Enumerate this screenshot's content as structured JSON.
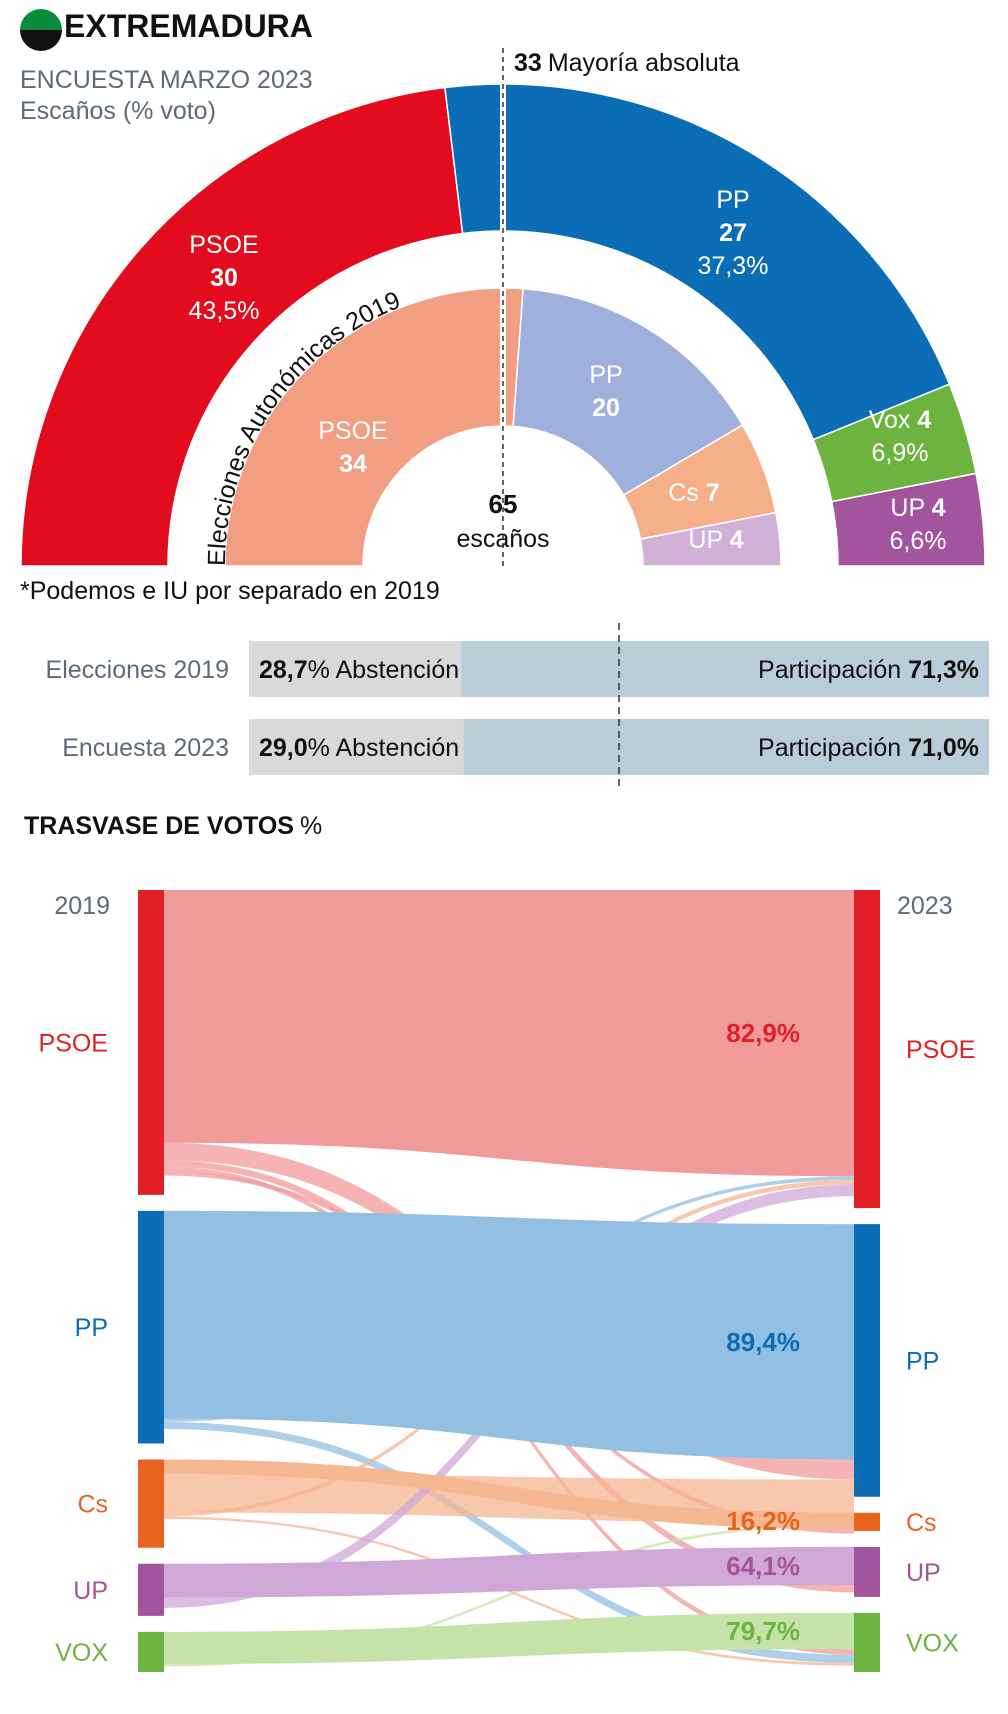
{
  "header": {
    "region": "EXTREMADURA",
    "survey": "ENCUESTA MARZO 2023",
    "subtitle": "Escaños (% voto)",
    "flag_colors": [
      "#0a8a3c",
      "#ffffff",
      "#111111"
    ]
  },
  "majority": {
    "seats": "33",
    "label": "Mayoría absoluta"
  },
  "center": {
    "seats": "65",
    "label": "escaños"
  },
  "footnote": "*Podemos e IU por separado en 2019",
  "chart_data": [
    {
      "type": "pie",
      "subtype": "hemicycle",
      "title": "ENCUESTA MARZO 2023",
      "total_seats": 65,
      "series": [
        {
          "name": "PSOE",
          "seats": 30,
          "seats_label": "30",
          "vote_pct": 43.5,
          "vote_label": "43,5%",
          "color": "#e30c1f"
        },
        {
          "name": "PP",
          "seats": 27,
          "seats_label": "27",
          "vote_pct": 37.3,
          "vote_label": "37,3%",
          "color": "#0a6db5"
        },
        {
          "name": "Vox",
          "seats": 4,
          "seats_label": "4",
          "vote_pct": 6.9,
          "vote_label": "6,9%",
          "color": "#6db33f"
        },
        {
          "name": "UP",
          "seats": 4,
          "seats_label": "4",
          "vote_pct": 6.6,
          "vote_label": "6,6%",
          "color": "#a2559d"
        }
      ]
    },
    {
      "type": "pie",
      "subtype": "hemicycle",
      "title": "Elecciones Autonómicas 2019",
      "total_seats": 65,
      "series": [
        {
          "name": "PSOE",
          "seats": 34,
          "seats_label": "34",
          "color": "#f19e82"
        },
        {
          "name": "PP",
          "seats": 20,
          "seats_label": "20",
          "color": "#9fb0dc"
        },
        {
          "name": "Cs",
          "seats": 7,
          "seats_label": "7",
          "color": "#f5b08a"
        },
        {
          "name": "UP",
          "seats": 4,
          "seats_label": "4",
          "color": "#d2b1d8"
        }
      ]
    },
    {
      "type": "bar",
      "subtype": "stacked-100",
      "categories": [
        "Elecciones 2019",
        "Encuesta 2023"
      ],
      "series": [
        {
          "name": "Abstención",
          "values": [
            28.7,
            29.0
          ],
          "labels": [
            "28,7",
            "29,0"
          ],
          "color": "#d9d9d9"
        },
        {
          "name": "Participación",
          "values": [
            71.3,
            71.0
          ],
          "labels": [
            "71,3%",
            "71,0%"
          ],
          "color": "#b9cdd9"
        }
      ]
    },
    {
      "type": "sankey",
      "title": "TRASVASE DE VOTOS",
      "title_unit": "%",
      "left_label": "2019",
      "right_label": "2023",
      "left_nodes": [
        {
          "name": "PSOE",
          "value": 38,
          "color": "#e01f26"
        },
        {
          "name": "PP",
          "value": 29,
          "color": "#0a6db5"
        },
        {
          "name": "Cs",
          "value": 11,
          "color": "#e8641e"
        },
        {
          "name": "UP",
          "value": 6.5,
          "color": "#a2559d"
        },
        {
          "name": "VOX",
          "value": 5,
          "color": "#6db33f"
        }
      ],
      "right_nodes": [
        {
          "name": "PSOE",
          "value": 35,
          "color": "#e01f26"
        },
        {
          "name": "PP",
          "value": 30,
          "color": "#0a6db5"
        },
        {
          "name": "Cs",
          "value": 2,
          "color": "#e8641e"
        },
        {
          "name": "UP",
          "value": 5.5,
          "color": "#a2559d"
        },
        {
          "name": "VOX",
          "value": 6.5,
          "color": "#6db33f"
        }
      ],
      "flows": [
        {
          "from": "PSOE",
          "to": "PSOE",
          "value": 31.5,
          "label": "82,9%"
        },
        {
          "from": "PSOE",
          "to": "PP",
          "value": 2.2
        },
        {
          "from": "PSOE",
          "to": "UP",
          "value": 0.8
        },
        {
          "from": "PSOE",
          "to": "VOX",
          "value": 0.6
        },
        {
          "from": "PSOE",
          "to": "Cs",
          "value": 0.5
        },
        {
          "from": "PP",
          "to": "PSOE",
          "value": 0.4
        },
        {
          "from": "PP",
          "to": "PP",
          "value": 25.9,
          "label": "89,4%"
        },
        {
          "from": "PP",
          "to": "VOX",
          "value": 0.9
        },
        {
          "from": "Cs",
          "to": "PP",
          "value": 4.8
        },
        {
          "from": "Cs",
          "to": "Cs",
          "value": 1.8,
          "label": "16,2%"
        },
        {
          "from": "Cs",
          "to": "PSOE",
          "value": 0.5
        },
        {
          "from": "Cs",
          "to": "VOX",
          "value": 0.3
        },
        {
          "from": "UP",
          "to": "PSOE",
          "value": 1.3
        },
        {
          "from": "UP",
          "to": "UP",
          "value": 4.2,
          "label": "64,1%"
        },
        {
          "from": "VOX",
          "to": "PP",
          "value": 0.3
        },
        {
          "from": "VOX",
          "to": "VOX",
          "value": 4.0,
          "label": "79,7%"
        }
      ]
    }
  ]
}
